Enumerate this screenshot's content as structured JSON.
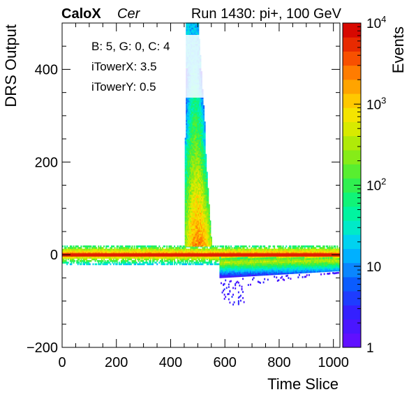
{
  "header": {
    "experiment": "CaloX",
    "channel": "Cer",
    "run_info": "Run 1430: pi+, 100 GeV"
  },
  "info_box": {
    "line1": "B: 5, G: 0, C: 4",
    "line2": "iTowerX: 3.5",
    "line3": "iTowerY: 0.5"
  },
  "colors": {
    "palette": [
      "#6010ff",
      "#4a16ff",
      "#3420ff",
      "#1e3cff",
      "#0a5cff",
      "#0a86ff",
      "#00b0ff",
      "#00d2f0",
      "#00eac8",
      "#00f4a0",
      "#10f478",
      "#30f050",
      "#58ee30",
      "#86ec18",
      "#b0ea08",
      "#d8ea00",
      "#f4e400",
      "#ffc800",
      "#ffa400",
      "#ff7c00",
      "#f85000",
      "#e82a00",
      "#d80800"
    ],
    "baseline": "#e02000"
  },
  "chart_data": {
    "type": "heatmap",
    "title": "",
    "xlabel": "Time Slice",
    "ylabel": "DRS Output",
    "xlim": [
      0,
      1024
    ],
    "ylim": [
      -200,
      500
    ],
    "x_ticks": [
      "0",
      "200",
      "400",
      "600",
      "800",
      "1000"
    ],
    "y_ticks": [
      "−200",
      "0",
      "200",
      "400"
    ],
    "z_label": "Events",
    "z_scale": "log",
    "zlim": [
      1,
      10000
    ],
    "z_ticks": [
      {
        "base": "1",
        "exp": ""
      },
      {
        "base": "10",
        "exp": ""
      },
      {
        "base": "10",
        "exp": "2"
      },
      {
        "base": "10",
        "exp": "3"
      },
      {
        "base": "10",
        "exp": "4"
      }
    ],
    "grid": false,
    "baseline": {
      "x_range": [
        0,
        1024
      ],
      "y_range": [
        -3,
        3
      ],
      "events": 5000
    },
    "pulse": {
      "x_peak": 500,
      "x_width": 40,
      "y_peak": 500,
      "ymin_sat": 20
    },
    "undershoot": {
      "x_start": 580,
      "x_end": 1024,
      "y_min": -110,
      "y_range": [
        -50,
        -10
      ]
    }
  }
}
